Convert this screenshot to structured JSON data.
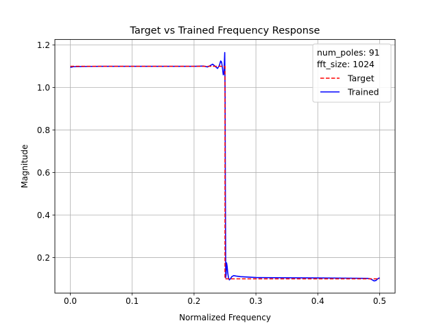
{
  "chart_data": {
    "type": "line",
    "title": "Target vs Trained Frequency Response",
    "xlabel": "Normalized Frequency",
    "ylabel": "Magnitude",
    "xlim": [
      -0.025,
      0.525
    ],
    "ylim": [
      0.033,
      1.226
    ],
    "xticks": [
      {
        "value": 0.0,
        "label": "0.0"
      },
      {
        "value": 0.1,
        "label": "0.1"
      },
      {
        "value": 0.2,
        "label": "0.2"
      },
      {
        "value": 0.3,
        "label": "0.3"
      },
      {
        "value": 0.4,
        "label": "0.4"
      },
      {
        "value": 0.5,
        "label": "0.5"
      }
    ],
    "yticks": [
      {
        "value": 0.2,
        "label": "0.2"
      },
      {
        "value": 0.4,
        "label": "0.4"
      },
      {
        "value": 0.6,
        "label": "0.6"
      },
      {
        "value": 0.8,
        "label": "0.8"
      },
      {
        "value": 1.0,
        "label": "1.0"
      },
      {
        "value": 1.2,
        "label": "1.2"
      }
    ],
    "grid": true,
    "legend": {
      "placement": "top-right",
      "header_lines": [
        "num_poles: 91",
        "fft_size: 1024"
      ]
    },
    "series": [
      {
        "name": "Target",
        "color": "#ff0000",
        "style": "dashed",
        "x": [
          0.0,
          0.25,
          0.25,
          0.5
        ],
        "y": [
          1.1,
          1.1,
          0.1,
          0.1
        ]
      },
      {
        "name": "Trained",
        "color": "#0000ff",
        "style": "solid",
        "x": [
          0.0,
          0.005,
          0.02,
          0.05,
          0.1,
          0.15,
          0.2,
          0.215,
          0.222,
          0.226,
          0.23,
          0.234,
          0.238,
          0.241,
          0.243,
          0.2445,
          0.246,
          0.2472,
          0.2484,
          0.249,
          0.2496,
          0.2502,
          0.2506,
          0.2512,
          0.2518,
          0.2526,
          0.2534,
          0.2544,
          0.2556,
          0.257,
          0.2588,
          0.261,
          0.264,
          0.268,
          0.275,
          0.3,
          0.35,
          0.4,
          0.45,
          0.48,
          0.485,
          0.488,
          0.491,
          0.494,
          0.497,
          0.5
        ],
        "y": [
          1.095,
          1.098,
          1.099,
          1.1,
          1.1,
          1.1,
          1.1,
          1.101,
          1.097,
          1.103,
          1.11,
          1.1,
          1.09,
          1.105,
          1.125,
          1.12,
          1.09,
          1.06,
          1.065,
          1.12,
          1.165,
          0.95,
          0.5,
          0.105,
          0.12,
          0.175,
          0.16,
          0.13,
          0.105,
          0.095,
          0.1,
          0.11,
          0.115,
          0.113,
          0.11,
          0.106,
          0.105,
          0.104,
          0.103,
          0.102,
          0.1,
          0.095,
          0.09,
          0.092,
          0.1,
          0.105
        ]
      }
    ]
  }
}
